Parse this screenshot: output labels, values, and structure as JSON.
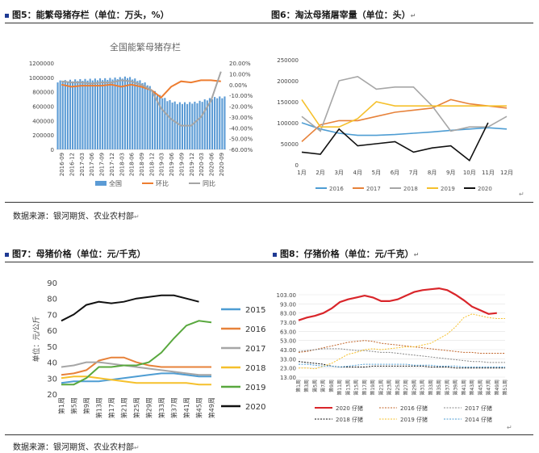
{
  "fig5": {
    "title": "图5：能繁母猪存栏（单位：万头，%）",
    "chart_data": {
      "type": "bar+line",
      "title": "全国能繁母猪存栏",
      "categories": [
        "2016-09",
        "2016-12",
        "2017-03",
        "2017-06",
        "2017-09",
        "2017-12",
        "2018-03",
        "2018-06",
        "2018-09",
        "2018-12",
        "2019-03",
        "2019-06",
        "2019-09",
        "2019-12",
        "2020-03",
        "2020-06",
        "2020-09"
      ],
      "y_left": {
        "min": 0,
        "max": 1200000,
        "ticks": [
          "0",
          "200000",
          "400000",
          "600000",
          "800000",
          "1000000",
          "1200000"
        ]
      },
      "y_right": {
        "min": -60,
        "max": 20,
        "ticks": [
          "-60.00%",
          "-50.00%",
          "-40.00%",
          "-30.00%",
          "-20.00%",
          "-10.00%",
          "0.00%",
          "10.00%",
          "20.00%"
        ]
      },
      "series": [
        {
          "name": "全国",
          "type": "bar",
          "color": "#5b9bd5",
          "values": [
            940000,
            950000,
            960000,
            965000,
            970000,
            975000,
            985000,
            1000000,
            960000,
            900000,
            760000,
            680000,
            640000,
            640000,
            650000,
            690000,
            720000
          ]
        },
        {
          "name": "环比",
          "type": "line",
          "color": "#ed7d31",
          "values": [
            0,
            -2,
            -1,
            -1,
            -1,
            0,
            -2,
            0,
            -2,
            -5,
            -12,
            -2,
            3,
            2,
            4,
            4,
            3
          ]
        },
        {
          "name": "同比",
          "type": "line",
          "color": "#a5a5a5",
          "values": [
            3,
            2,
            2,
            1,
            2,
            2,
            4,
            3,
            0,
            -5,
            -22,
            -32,
            -38,
            -38,
            -30,
            -15,
            12
          ]
        }
      ],
      "legend_position": "bottom"
    },
    "legend": [
      "全国",
      "环比",
      "同比"
    ]
  },
  "fig6": {
    "title": "图6：淘汰母猪屠宰量（单位：头）",
    "chart_data": {
      "type": "line",
      "categories": [
        "1月",
        "2月",
        "3月",
        "4月",
        "5月",
        "6月",
        "7月",
        "8月",
        "9月",
        "10月",
        "11月",
        "12月"
      ],
      "y": {
        "min": 0,
        "max": 250000,
        "ticks": [
          "0",
          "50000",
          "100000",
          "150000",
          "200000",
          "250000"
        ]
      },
      "series": [
        {
          "name": "2016",
          "color": "#4e9dd3",
          "values": [
            100000,
            85000,
            75000,
            70000,
            70000,
            72000,
            75000,
            78000,
            82000,
            85000,
            88000,
            85000
          ]
        },
        {
          "name": "2017",
          "color": "#e7823a",
          "values": [
            55000,
            95000,
            105000,
            105000,
            115000,
            125000,
            130000,
            135000,
            155000,
            145000,
            140000,
            135000
          ]
        },
        {
          "name": "2018",
          "color": "#a6a6a6",
          "values": [
            115000,
            80000,
            200000,
            210000,
            180000,
            185000,
            185000,
            140000,
            80000,
            90000,
            90000,
            115000
          ]
        },
        {
          "name": "2019",
          "color": "#f5c02c",
          "values": [
            155000,
            90000,
            90000,
            110000,
            150000,
            140000,
            140000,
            140000,
            140000,
            140000,
            140000,
            140000
          ]
        },
        {
          "name": "2020",
          "color": "#111111",
          "values": [
            30000,
            25000,
            85000,
            45000,
            50000,
            55000,
            30000,
            40000,
            45000,
            10000,
            100000,
            null
          ]
        }
      ],
      "legend_position": "bottom"
    },
    "legend": [
      "2016",
      "2017",
      "2018",
      "2019",
      "2020"
    ]
  },
  "source1": "数据来源：银河期货、农业农村部",
  "fig7": {
    "title": "图7：母猪价格（单位：元/千克）",
    "chart_data": {
      "type": "line",
      "categories": [
        "第1周",
        "第5周",
        "第9周",
        "第13周",
        "第17周",
        "第21周",
        "第25周",
        "第29周",
        "第33周",
        "第37周",
        "第41周",
        "第45周",
        "第49周"
      ],
      "ylabel": "单位：元/公斤",
      "y": {
        "min": 20,
        "max": 90,
        "ticks": [
          "20",
          "30",
          "40",
          "50",
          "60",
          "70",
          "80",
          "90"
        ]
      },
      "series": [
        {
          "name": "2015",
          "color": "#4e9dd3",
          "values": [
            27,
            28,
            28,
            28,
            29,
            30,
            31,
            32,
            33,
            33,
            32,
            31,
            31
          ]
        },
        {
          "name": "2016",
          "color": "#e7823a",
          "values": [
            32,
            33,
            35,
            41,
            43,
            43,
            40,
            38,
            37,
            37,
            37,
            37,
            37
          ]
        },
        {
          "name": "2017",
          "color": "#a6a6a6",
          "values": [
            37,
            38,
            40,
            40,
            39,
            38,
            37,
            36,
            35,
            34,
            33,
            32,
            32
          ]
        },
        {
          "name": "2018",
          "color": "#f5c02c",
          "values": [
            30,
            31,
            31,
            30,
            29,
            28,
            27,
            27,
            27,
            27,
            27,
            26,
            26
          ]
        },
        {
          "name": "2019",
          "color": "#59a83e",
          "values": [
            26,
            26,
            30,
            37,
            37,
            38,
            38,
            40,
            46,
            55,
            63,
            66,
            65
          ]
        },
        {
          "name": "2020",
          "color": "#111111",
          "values": [
            66,
            70,
            76,
            78,
            77,
            78,
            80,
            81,
            82,
            82,
            80,
            78,
            null
          ]
        }
      ]
    },
    "legend": [
      "2015",
      "2016",
      "2017",
      "2018",
      "2019",
      "2020"
    ]
  },
  "fig8": {
    "title": "图8：仔猪价格（单位：元/千克）",
    "chart_data": {
      "type": "line",
      "categories": [
        "第1周",
        "第3周",
        "第5周",
        "第7周",
        "第9周",
        "第11周",
        "第13周",
        "第15周",
        "第17周",
        "第19周",
        "第21周",
        "第23周",
        "第25周",
        "第27周",
        "第29周",
        "第31周",
        "第33周",
        "第35周",
        "第37周",
        "第39周",
        "第41周",
        "第43周",
        "第45周",
        "第47周",
        "第49周",
        "第51周"
      ],
      "y": {
        "min": 13,
        "max": 103,
        "ticks": [
          "13.00",
          "23.00",
          "33.00",
          "43.00",
          "53.00",
          "63.00",
          "73.00",
          "83.00",
          "93.00",
          "103.00"
        ]
      },
      "series": [
        {
          "name": "2020 仔猪",
          "color": "#d9252a",
          "style": "solid",
          "values": [
            75,
            78,
            80,
            83,
            88,
            95,
            98,
            100,
            102,
            100,
            96,
            96,
            98,
            102,
            106,
            108,
            109,
            110,
            108,
            103,
            97,
            90,
            86,
            82,
            83,
            null
          ]
        },
        {
          "name": "2016 仔猪",
          "color": "#c1652a",
          "style": "dashed",
          "values": [
            40,
            41,
            43,
            45,
            47,
            49,
            51,
            52,
            53,
            52,
            50,
            49,
            48,
            47,
            46,
            45,
            44,
            43,
            42,
            41,
            40,
            40,
            39,
            39,
            39,
            39
          ]
        },
        {
          "name": "2017 仔猪",
          "color": "#888888",
          "style": "dashed",
          "values": [
            41,
            42,
            43,
            44,
            44,
            44,
            43,
            42,
            42,
            41,
            40,
            40,
            39,
            38,
            37,
            36,
            35,
            34,
            33,
            32,
            31,
            30,
            30,
            29,
            29,
            29
          ]
        },
        {
          "name": "2018 仔猪",
          "color": "#111111",
          "style": "dashed",
          "values": [
            30,
            29,
            28,
            27,
            25,
            24,
            24,
            24,
            24,
            25,
            25,
            25,
            25,
            25,
            25,
            25,
            24,
            24,
            24,
            23,
            23,
            23,
            23,
            23,
            23,
            23
          ]
        },
        {
          "name": "2019 仔猪",
          "color": "#f5c02c",
          "style": "dashed",
          "values": [
            23,
            23,
            22,
            25,
            28,
            33,
            38,
            40,
            43,
            44,
            43,
            44,
            45,
            46,
            46,
            48,
            50,
            55,
            60,
            68,
            78,
            82,
            80,
            78,
            77,
            77
          ]
        },
        {
          "name": "2014 仔猪",
          "color": "#4e9dd3",
          "style": "dashed",
          "values": [
            27,
            27,
            26,
            25,
            25,
            24,
            25,
            26,
            27,
            27,
            27,
            27,
            27,
            27,
            26,
            26,
            26,
            25,
            25,
            25,
            24,
            24,
            24,
            24,
            24,
            24
          ]
        }
      ]
    },
    "legend": [
      "2020 仔猪",
      "2016 仔猪",
      "2017 仔猪",
      "2018 仔猪",
      "2019 仔猪",
      "2014 仔猪"
    ]
  },
  "source2": "数据来源：银河期货、农业农村部"
}
